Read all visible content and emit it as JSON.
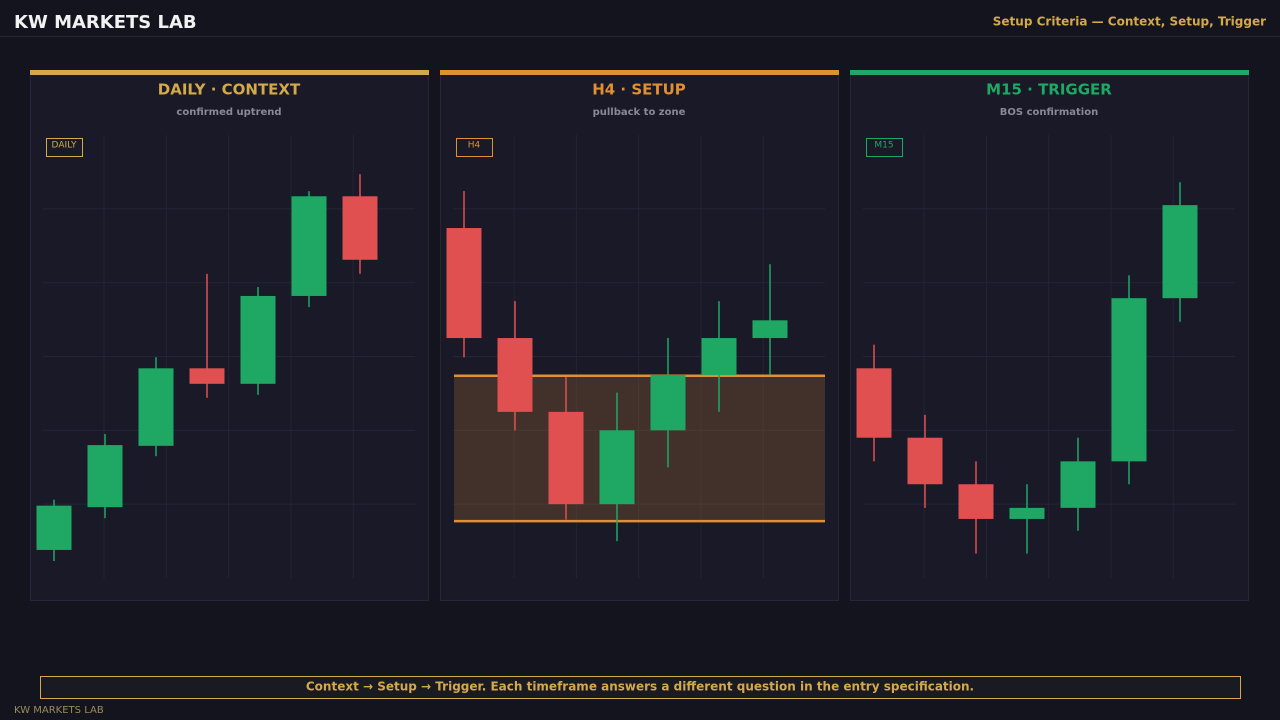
{
  "header": {
    "title": "KW MARKETS LAB",
    "subtitle": "Setup Criteria — Context, Setup, Trigger"
  },
  "chart_data": [
    {
      "type": "candlestick",
      "title": "DAILY · CONTEXT",
      "subtitle": "confirmed uptrend",
      "badge": "DAILY",
      "accent": "#d4a94a",
      "up_color": "#1fa864",
      "down_color": "#e05050",
      "ylim": [
        0,
        6
      ],
      "yticks": [
        1,
        2,
        3,
        4,
        5
      ],
      "grid": true,
      "open": [
        0.38,
        0.96,
        1.79,
        2.84,
        2.63,
        3.82,
        5.17
      ],
      "high": [
        1.06,
        1.95,
        2.99,
        4.12,
        3.94,
        5.24,
        5.47
      ],
      "low": [
        0.23,
        0.81,
        1.65,
        2.44,
        2.48,
        3.67,
        4.12
      ],
      "close": [
        0.98,
        1.8,
        2.84,
        2.63,
        3.82,
        5.17,
        4.31
      ]
    },
    {
      "type": "candlestick",
      "title": "H4 · SETUP",
      "subtitle": "pullback to zone",
      "badge": "H4",
      "accent": "#e08f32",
      "up_color": "#1fa864",
      "down_color": "#e05050",
      "ylim": [
        0,
        6
      ],
      "yticks": [
        1,
        2,
        3,
        4,
        5
      ],
      "grid": true,
      "zone": [
        0.77,
        2.74
      ],
      "open": [
        4.74,
        3.25,
        2.25,
        1.0,
        2.0,
        2.75,
        3.25
      ],
      "high": [
        5.24,
        3.75,
        2.72,
        2.51,
        3.25,
        3.75,
        4.25
      ],
      "low": [
        2.99,
        2.0,
        0.79,
        0.5,
        1.5,
        2.25,
        2.75
      ],
      "close": [
        3.25,
        2.25,
        1.0,
        2.0,
        2.75,
        3.25,
        3.49
      ]
    },
    {
      "type": "candlestick",
      "title": "M15 · TRIGGER",
      "subtitle": "BOS confirmation",
      "badge": "M15",
      "accent": "#1fa864",
      "up_color": "#1fa864",
      "down_color": "#e05050",
      "ylim": [
        0,
        6
      ],
      "yticks": [
        1,
        2,
        3,
        4,
        5
      ],
      "grid": true,
      "open": [
        2.84,
        1.9,
        1.27,
        0.8,
        0.95,
        1.58,
        3.79
      ],
      "high": [
        3.16,
        2.21,
        1.58,
        1.27,
        1.9,
        4.1,
        5.36
      ],
      "low": [
        1.58,
        0.95,
        0.33,
        0.33,
        0.64,
        1.27,
        3.47
      ],
      "close": [
        1.9,
        1.27,
        0.8,
        0.95,
        1.58,
        3.79,
        5.05
      ]
    }
  ],
  "footer": {
    "note": "Context → Setup → Trigger. Each timeframe answers a different question in the entry specification.",
    "brand": "KW MARKETS LAB"
  }
}
